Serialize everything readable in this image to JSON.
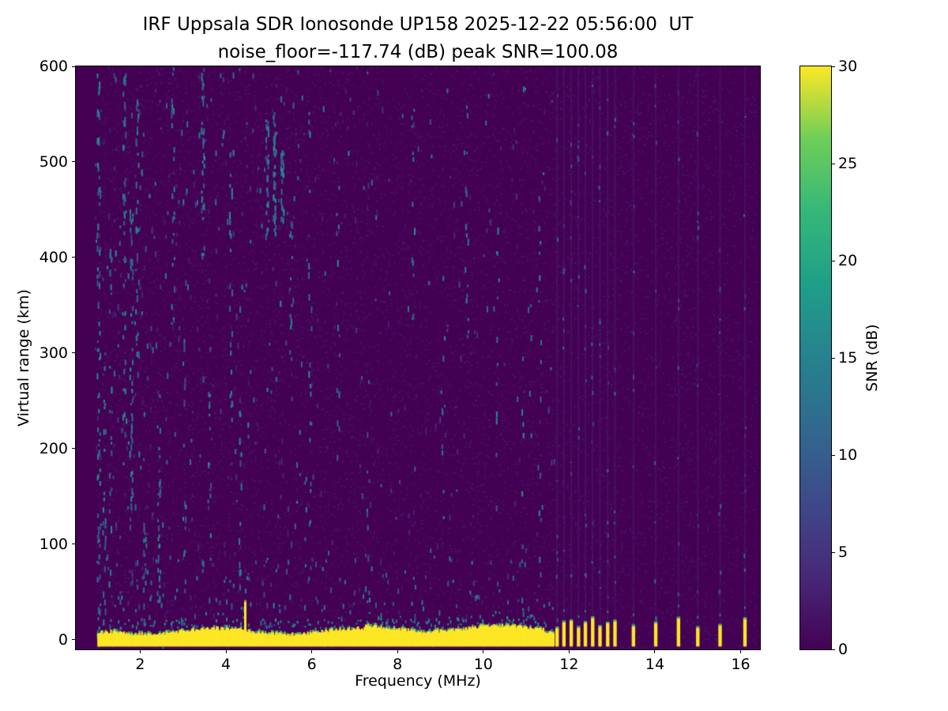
{
  "chart_data": {
    "type": "heatmap",
    "title": "IRF Uppsala SDR Ionosonde UP158 2025-12-22 05:56:00  UT",
    "subtitle": "noise_floor=-117.74 (dB) peak SNR=100.08",
    "xlabel": "Frequency (MHz)",
    "ylabel": "Virtual range (km)",
    "axes": {
      "x_min": 0.5,
      "x_max": 16.45,
      "y_min": -10,
      "y_max": 600,
      "grid": false
    },
    "x_ticks": [
      2,
      4,
      6,
      8,
      10,
      12,
      14,
      16
    ],
    "y_ticks": [
      0,
      100,
      200,
      300,
      400,
      500,
      600
    ],
    "colorbar": {
      "label": "SNR (dB)",
      "min": 0,
      "max": 30,
      "ticks": [
        0,
        5,
        10,
        15,
        20,
        25,
        30
      ],
      "colormap": "viridis",
      "stops": [
        "#440154",
        "#482878",
        "#3e4989",
        "#31688e",
        "#26828e",
        "#1f9e89",
        "#35b779",
        "#6ece58",
        "#fde725"
      ]
    },
    "background_snr_db": 0,
    "features": {
      "data_freq_range_mhz": [
        0.95,
        16.35
      ],
      "echo_band": {
        "freq_start_mhz": 1.0,
        "freq_end_mhz": 11.62,
        "base_top_km": 9,
        "bottom_km": -7,
        "peak_snr_db": 30
      },
      "spike": {
        "freq_mhz": 4.45,
        "top_km": 40,
        "snr_db": 30
      },
      "pulses": {
        "freqs_mhz": [
          11.72,
          11.88,
          12.05,
          12.22,
          12.38,
          12.55,
          12.72,
          12.9,
          13.07,
          13.5,
          14.02,
          14.55,
          15.0,
          15.52,
          16.1
        ],
        "top_km": 18,
        "bottom_km": -7,
        "snr_db": 30
      },
      "noise_density": [
        {
          "f_max": 2.3,
          "n": 5.0
        },
        {
          "f_max": 6.0,
          "n": 3.2
        },
        {
          "f_max": 11.65,
          "n": 2.0
        },
        {
          "f_max": 16.35,
          "n": 0.55
        }
      ],
      "noise_streaks": [
        {
          "f": 1.02,
          "km0": -5,
          "km1": 600,
          "n": 70
        },
        {
          "f": 1.15,
          "km0": 0,
          "km1": 350,
          "n": 25
        },
        {
          "f": 1.3,
          "km0": 50,
          "km1": 420,
          "n": 22
        },
        {
          "f": 1.62,
          "km0": 230,
          "km1": 600,
          "n": 40
        },
        {
          "f": 1.78,
          "km0": 120,
          "km1": 470,
          "n": 45
        },
        {
          "f": 1.92,
          "km0": 280,
          "km1": 580,
          "n": 30
        },
        {
          "f": 2.1,
          "km0": 0,
          "km1": 200,
          "n": 15
        },
        {
          "f": 2.42,
          "km0": 30,
          "km1": 260,
          "n": 28
        },
        {
          "f": 2.75,
          "km0": 330,
          "km1": 600,
          "n": 24
        },
        {
          "f": 3.02,
          "km0": 80,
          "km1": 380,
          "n": 18
        },
        {
          "f": 3.45,
          "km0": 400,
          "km1": 600,
          "n": 34
        },
        {
          "f": 3.6,
          "km0": 90,
          "km1": 320,
          "n": 14
        },
        {
          "f": 4.1,
          "km0": 230,
          "km1": 520,
          "n": 22
        },
        {
          "f": 4.32,
          "km0": 40,
          "km1": 240,
          "n": 14
        },
        {
          "f": 4.95,
          "km0": 410,
          "km1": 545,
          "n": 30
        },
        {
          "f": 5.12,
          "km0": 425,
          "km1": 555,
          "n": 38
        },
        {
          "f": 5.3,
          "km0": 435,
          "km1": 520,
          "n": 26
        },
        {
          "f": 5.5,
          "km0": 290,
          "km1": 470,
          "n": 14
        },
        {
          "f": 5.95,
          "km0": 80,
          "km1": 560,
          "n": 18
        },
        {
          "f": 6.6,
          "km0": 180,
          "km1": 500,
          "n": 12
        },
        {
          "f": 7.3,
          "km0": 40,
          "km1": 300,
          "n": 10
        },
        {
          "f": 8.35,
          "km0": 280,
          "km1": 600,
          "n": 12
        },
        {
          "f": 9.05,
          "km0": 90,
          "km1": 400,
          "n": 10
        },
        {
          "f": 9.6,
          "km0": 240,
          "km1": 560,
          "n": 12
        },
        {
          "f": 10.3,
          "km0": 140,
          "km1": 450,
          "n": 10
        },
        {
          "f": 10.9,
          "km0": 0,
          "km1": 300,
          "n": 12
        },
        {
          "f": 11.3,
          "km0": 80,
          "km1": 500,
          "n": 12
        }
      ]
    }
  }
}
